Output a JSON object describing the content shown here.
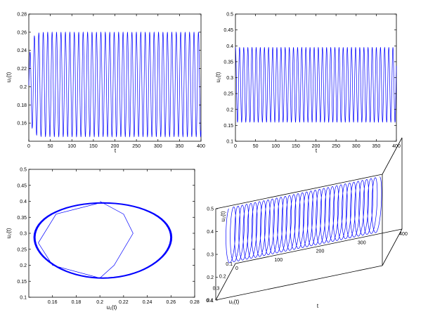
{
  "chart_data": [
    {
      "type": "line",
      "title": "",
      "xlabel": "t",
      "ylabel": "u₁(t)",
      "xlim": [
        0,
        400
      ],
      "ylim": [
        0.14,
        0.28
      ],
      "xticks": [
        "0",
        "50",
        "100",
        "150",
        "200",
        "250",
        "300",
        "350",
        "400"
      ],
      "yticks": [
        "0.16",
        "0.18",
        "0.2",
        "0.22",
        "0.24",
        "0.26",
        "0.28"
      ],
      "grid": false,
      "series": [
        {
          "color": "#0000ff",
          "oscillation": {
            "min": 0.145,
            "max": 0.26,
            "period": 10.3,
            "initial": 0.2
          }
        }
      ]
    },
    {
      "type": "line",
      "title": "",
      "xlabel": "t",
      "ylabel": "u₂(t)",
      "xlim": [
        0,
        400
      ],
      "ylim": [
        0.1,
        0.5
      ],
      "xticks": [
        "0",
        "50",
        "100",
        "150",
        "200",
        "250",
        "300",
        "350",
        "400"
      ],
      "yticks": [
        "0.1",
        "0.15",
        "0.2",
        "0.25",
        "0.3",
        "0.35",
        "0.4",
        "0.45",
        "0.5"
      ],
      "grid": false,
      "series": [
        {
          "color": "#0000ff",
          "oscillation": {
            "min": 0.16,
            "max": 0.395,
            "period": 10.3,
            "initial": 0.4
          }
        }
      ]
    },
    {
      "type": "line",
      "title": "",
      "xlabel": "u₁(t)",
      "ylabel": "u₂(t)",
      "xlim": [
        0.14,
        0.28
      ],
      "ylim": [
        0.1,
        0.5
      ],
      "xticks": [
        "0.16",
        "0.18",
        "0.2",
        "0.22",
        "0.24",
        "0.26",
        "0.28"
      ],
      "yticks": [
        "0.1",
        "0.15",
        "0.2",
        "0.25",
        "0.3",
        "0.35",
        "0.4",
        "0.45",
        "0.5"
      ],
      "grid": false,
      "series": [
        {
          "color": "#0000ff",
          "limit_cycle": {
            "u1_range": [
              0.145,
              0.26
            ],
            "u2_range": [
              0.16,
              0.395
            ]
          },
          "transient": [
            [
              0.2,
              0.4
            ],
            [
              0.22,
              0.36
            ],
            [
              0.228,
              0.3
            ],
            [
              0.212,
              0.2
            ],
            [
              0.2,
              0.16
            ],
            [
              0.16,
              0.2
            ],
            [
              0.148,
              0.27
            ],
            [
              0.163,
              0.36
            ],
            [
              0.2,
              0.395
            ]
          ]
        }
      ]
    },
    {
      "type": "line",
      "title": "",
      "xlabel": "u₁(t)",
      "ylabel": "t",
      "zlabel": "u₂(t)",
      "xlim": [
        0.1,
        0.4
      ],
      "ylim": [
        0,
        400
      ],
      "zlim": [
        0.1,
        0.5
      ],
      "xticks": [
        "0.1",
        "0.2",
        "0.3",
        "0.4"
      ],
      "yticks": [
        "0",
        "100",
        "200",
        "300",
        "400"
      ],
      "zticks": [
        "0.1",
        "0.2",
        "0.3",
        "0.4",
        "0.5"
      ],
      "grid": false,
      "series": [
        {
          "color": "#0000ff",
          "t_range": [
            0,
            360
          ],
          "oscillation": {
            "u1_range": [
              0.145,
              0.26
            ],
            "u2_range": [
              0.16,
              0.395
            ],
            "period": 10.3
          }
        }
      ]
    }
  ]
}
